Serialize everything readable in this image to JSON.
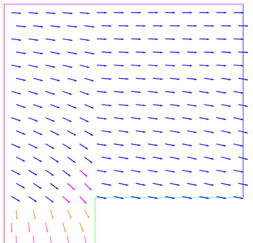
{
  "chart_data": {
    "type": "vector-field",
    "title": "",
    "xlabel": "",
    "ylabel": "",
    "grid": false,
    "legend": "none",
    "xlim": [
      0,
      1
    ],
    "ylim": [
      0,
      1
    ],
    "domain": {
      "outer_box": [
        0,
        0,
        1,
        1
      ],
      "cutout_lower_right": [
        0.38,
        0,
        1,
        0.19
      ]
    },
    "boundary_colors": {
      "left_upper": "#ff2a6d",
      "left_lower": "#ff2a6d",
      "top": "#ff33ff",
      "right": "#2d3cff",
      "cutout_top": "#66ffcc",
      "cutout_left": "#66ff66"
    },
    "color_scale": [
      {
        "max": 0.12,
        "color": "#e02020"
      },
      {
        "max": 0.22,
        "color": "#ff66cc"
      },
      {
        "max": 0.32,
        "color": "#ff9933"
      },
      {
        "max": 0.46,
        "color": "#ffff00"
      },
      {
        "max": 0.58,
        "color": "#33dd33"
      },
      {
        "max": 0.78,
        "color": "#00ffff"
      },
      {
        "max": 1.0,
        "color": "#1010ee"
      },
      {
        "max": 10.0,
        "color": "#ee00ee"
      }
    ],
    "arrow_color_fallback": "#000000"
  }
}
